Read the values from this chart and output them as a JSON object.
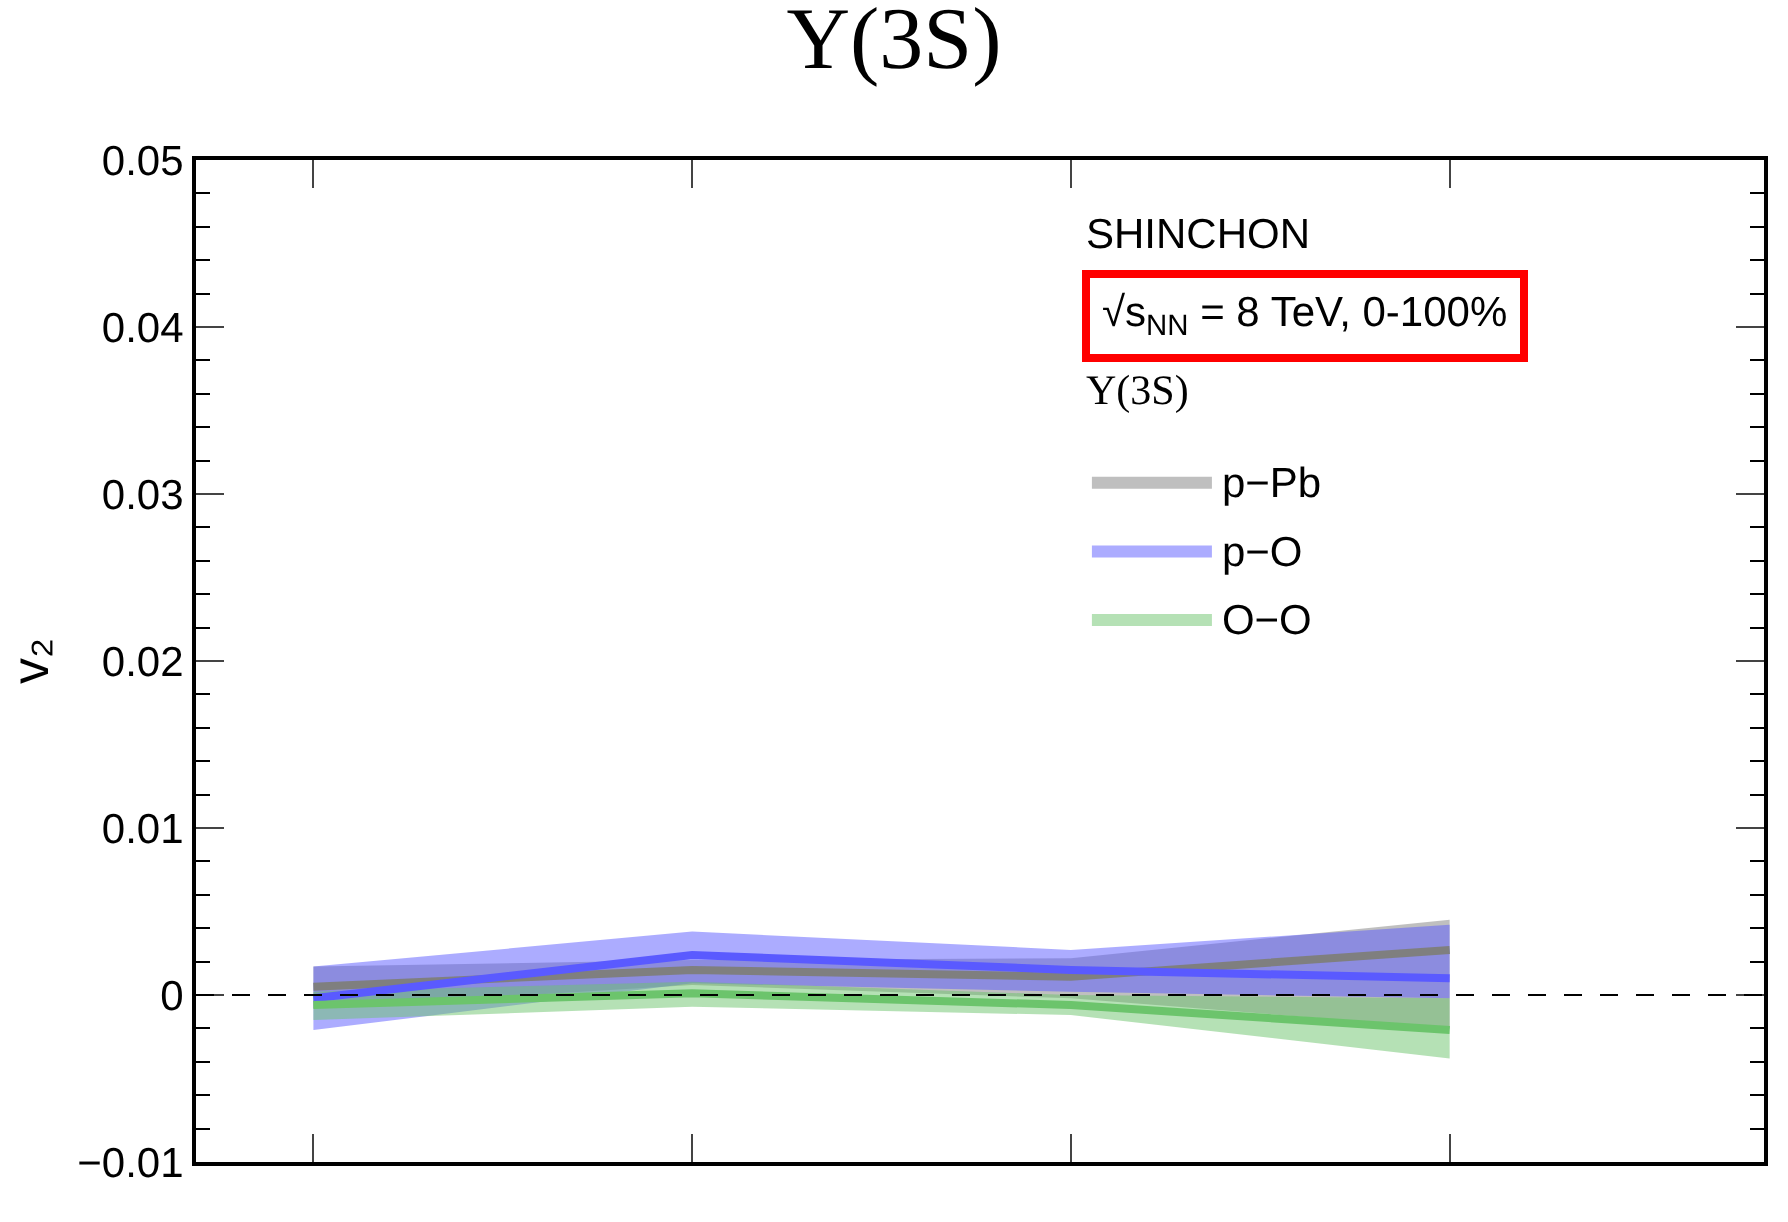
{
  "chart_data": {
    "type": "line",
    "title": "Υ(3S)",
    "ylabel": "v₂",
    "annotations": [
      "SHINCHON",
      "√s$_{NN}$ = 8 TeV, 0-100%",
      "Υ(3S)"
    ],
    "categories": [
      null,
      null,
      null,
      null
    ],
    "series": [
      {
        "name": "p−Pb",
        "color": "#7f7f7f",
        "values": [
          0.0005,
          0.0015,
          0.0011,
          0.0027
        ],
        "lower": [
          -0.0008,
          0.0006,
          -0.0002,
          -0.002
        ],
        "upper": [
          0.0017,
          0.0021,
          0.0022,
          0.0045
        ]
      },
      {
        "name": "p−O",
        "color": "#5a5aff",
        "values": [
          -0.0002,
          0.0024,
          0.0015,
          0.001
        ],
        "lower": [
          -0.0021,
          0.0007,
          0.0002,
          -0.0002
        ],
        "upper": [
          0.0017,
          0.0038,
          0.0027,
          0.0042
        ]
      },
      {
        "name": "O−O",
        "color": "#6cc46c",
        "values": [
          -0.0006,
          0.0001,
          -0.0006,
          -0.0021
        ],
        "lower": [
          -0.0015,
          -0.0007,
          -0.0012,
          -0.0038
        ],
        "upper": [
          0.0002,
          0.0008,
          0.0,
          -0.0002
        ]
      }
    ],
    "ylim": [
      -0.01,
      0.05
    ],
    "yticks": [
      {
        "value": -0.01,
        "label": "−0.01"
      },
      0,
      0.01,
      0.02,
      0.03,
      0.04,
      0.05
    ],
    "ref_lines": [
      {
        "axis": "y",
        "value": 0,
        "label": null,
        "color": "#000000",
        "line_style": "dashed"
      }
    ],
    "legend": "top right",
    "marker": "none",
    "line_style": "solid"
  }
}
